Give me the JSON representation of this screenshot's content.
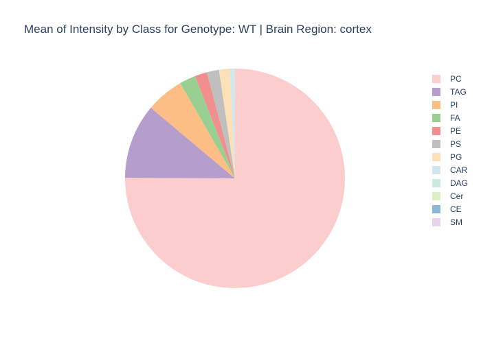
{
  "chart_data": {
    "type": "pie",
    "title": "Mean of Intensity by Class for Genotype: WT | Brain Region: cortex",
    "legend_position": "right",
    "slice_order": "clockwise starting at 12 o'clock",
    "slices": [
      {
        "label": "PC",
        "value": 75.4,
        "color": "#fccdcd"
      },
      {
        "label": "TAG",
        "value": 11.1,
        "color": "#b59dcc"
      },
      {
        "label": "PI",
        "value": 5.6,
        "color": "#fdbe85"
      },
      {
        "label": "FA",
        "value": 2.4,
        "color": "#9acf92"
      },
      {
        "label": "PE",
        "value": 1.8,
        "color": "#f18f8f"
      },
      {
        "label": "PS",
        "value": 1.8,
        "color": "#c0bfbf"
      },
      {
        "label": "PG",
        "value": 1.6,
        "color": "#fde0b6"
      },
      {
        "label": "CAR",
        "value": 0.6,
        "color": "#d2e6ef"
      },
      {
        "label": "DAG",
        "value": 0.05,
        "color": "#c8eadf"
      },
      {
        "label": "Cer",
        "value": 0.04,
        "color": "#dcefc7"
      },
      {
        "label": "CE",
        "value": 0.03,
        "color": "#8cb8d8"
      },
      {
        "label": "SM",
        "value": 0.02,
        "color": "#e6d5ea"
      }
    ]
  }
}
